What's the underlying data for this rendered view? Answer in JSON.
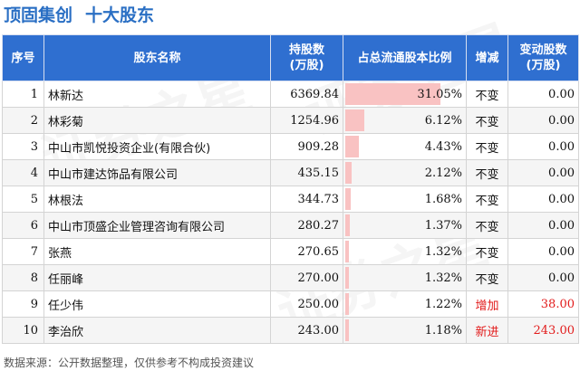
{
  "header": {
    "company": "顶固集创",
    "subtitle": "十大股东"
  },
  "table": {
    "columns": [
      "序号",
      "股东名称",
      "持股数\n(万股)",
      "占总流通股本比例",
      "增减",
      "变动股数\n(万股)"
    ],
    "rows": [
      {
        "idx": "1",
        "name": "林新达",
        "shares": "6369.84",
        "ratio": "31.05%",
        "ratio_value": 31.05,
        "change": "不变",
        "delta": "0.00",
        "up": false
      },
      {
        "idx": "2",
        "name": "林彩菊",
        "shares": "1254.96",
        "ratio": "6.12%",
        "ratio_value": 6.12,
        "change": "不变",
        "delta": "0.00",
        "up": false
      },
      {
        "idx": "3",
        "name": "中山市凯悦投资企业(有限合伙)",
        "shares": "909.28",
        "ratio": "4.43%",
        "ratio_value": 4.43,
        "change": "不变",
        "delta": "0.00",
        "up": false
      },
      {
        "idx": "4",
        "name": "中山市建达饰品有限公司",
        "shares": "435.15",
        "ratio": "2.12%",
        "ratio_value": 2.12,
        "change": "不变",
        "delta": "0.00",
        "up": false
      },
      {
        "idx": "5",
        "name": "林根法",
        "shares": "344.73",
        "ratio": "1.68%",
        "ratio_value": 1.68,
        "change": "不变",
        "delta": "0.00",
        "up": false
      },
      {
        "idx": "6",
        "name": "中山市顶盛企业管理咨询有限公司",
        "shares": "280.27",
        "ratio": "1.37%",
        "ratio_value": 1.37,
        "change": "不变",
        "delta": "0.00",
        "up": false
      },
      {
        "idx": "7",
        "name": "张燕",
        "shares": "270.65",
        "ratio": "1.32%",
        "ratio_value": 1.32,
        "change": "不变",
        "delta": "0.00",
        "up": false
      },
      {
        "idx": "8",
        "name": "任丽峰",
        "shares": "270.00",
        "ratio": "1.32%",
        "ratio_value": 1.32,
        "change": "不变",
        "delta": "0.00",
        "up": false
      },
      {
        "idx": "9",
        "name": "任少伟",
        "shares": "250.00",
        "ratio": "1.22%",
        "ratio_value": 1.22,
        "change": "增加",
        "delta": "38.00",
        "up": true
      },
      {
        "idx": "10",
        "name": "李治欣",
        "shares": "243.00",
        "ratio": "1.18%",
        "ratio_value": 1.18,
        "change": "新进",
        "delta": "243.00",
        "up": true
      }
    ]
  },
  "footer": "数据来源：公开数据整理，仅供参考不构成投资建议",
  "colors": {
    "title": "#2a6fc4",
    "header_bg": "#2f6fd0",
    "bar": "#f9c2c2",
    "increase": "#e21b1b"
  }
}
